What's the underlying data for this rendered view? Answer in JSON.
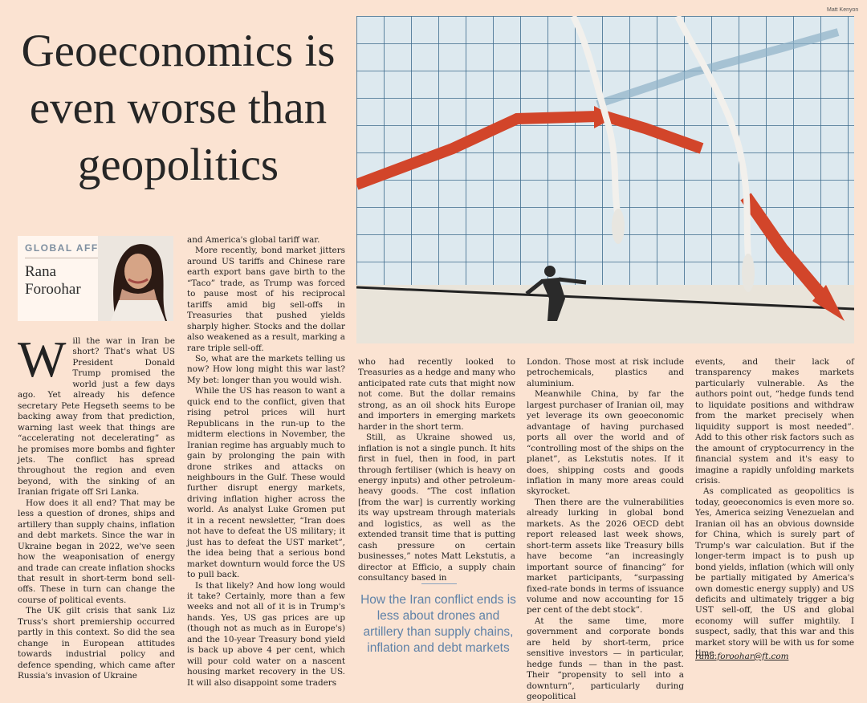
{
  "article": {
    "headline": "Geoeconomics is even worse than geopolitics",
    "illustration_credit": "Matt Kenyon",
    "column_name": "GLOBAL AFFAIRS",
    "author": "Rana Foroohar",
    "pull_quote": "How the Iran conflict ends is less about drones and artillery than supply chains, inflation and debt markets",
    "email": "rana.foroohar@ft.com",
    "dropcap": "W",
    "col1": [
      "ill the war in Iran be short? That's what US President Donald Trump promised the world just a few days ago. Yet already his defence secretary Pete Hegseth seems to be backing away from that prediction, warning last week that things are “accelerating not decelerating” as he promises more bombs and fighter jets. The conflict has spread throughout the region and even beyond, with the sinking of an Iranian frigate off Sri Lanka.",
      "How does it all end? That may be less a question of drones, ships and artillery than supply chains, inflation and debt markets. Since the war in Ukraine began in 2022, we've seen how the weaponisation of energy and trade can create inflation shocks that result in short-term bond sell-offs. These in turn can change the course of political events.",
      "The UK gilt crisis that sank Liz Truss's short premiership occurred partly in this context. So did the sea change in European attitudes towards industrial policy and defence spending, which came after Russia's invasion of Ukraine"
    ],
    "col2": [
      "and America's global tariff war.",
      "More recently, bond market jitters around US tariffs and Chinese rare earth export bans gave birth to the “Taco” trade, as Trump was forced to pause most of his reciprocal tariffs amid big sell-offs in Treasuries that pushed yields sharply higher. Stocks and the dollar also weakened as a result, marking a rare triple sell-off.",
      "So, what are the markets telling us now? How long might this war last? My bet: longer than you would wish.",
      "While the US has reason to want a quick end to the conflict, given that rising petrol prices will hurt Republicans in the run-up to the midterm elections in November, the Iranian regime has arguably much to gain by prolonging the pain with drone strikes and attacks on neighbours in the Gulf. These would further disrupt energy markets, driving inflation higher across the world. As analyst Luke Gromen put it in a recent newsletter, “Iran does not have to defeat the US military; it just has to defeat the UST market”, the idea being that a serious bond market downturn would force the US to pull back.",
      "Is that likely? And how long would it take? Certainly, more than a few weeks and not all of it is in Trump's hands. Yes, US gas prices are up (though not as much as in Europe's) and the 10-year Treasury bond yield is back up above 4 per cent, which will pour cold water on a nascent housing market recovery in the US. It will also disappoint some traders"
    ],
    "col3": [
      "who had recently looked to Treasuries as a hedge and many who anticipated rate cuts that might now not come. But the dollar remains strong, as an oil shock hits Europe and importers in emerging markets harder in the short term.",
      "Still, as Ukraine showed us, inflation is not a single punch. It hits first in fuel, then in food, in part through fertiliser (which is heavy on energy inputs) and other petroleum-heavy goods. “The cost inflation [from the war] is currently working its way upstream through materials and logistics, as well as the extended transit time that is putting cash pressure on certain businesses,” notes Matt Lekstutis, a director at Efficio, a supply chain consultancy based in"
    ],
    "col4": [
      "London. Those most at risk include petrochemicals, plastics and aluminium.",
      "Meanwhile China, by far the largest purchaser of Iranian oil, may yet leverage its own geoeconomic advantage of having purchased ports all over the world and of “controlling most of the ships on the planet”, as Lekstutis notes. If it does, shipping costs and goods inflation in many more areas could skyrocket.",
      "Then there are the vulnerabilities already lurking in global bond markets. As the 2026 OECD debt report released last week shows, short-term assets like Treasury bills have become “an increasingly important source of financing” for market participants, “surpassing fixed-rate bonds in terms of issuance volume and now accounting for 15 per cent of the debt stock”.",
      "At the same time, more government and corporate bonds are held by short-term, price sensitive investors — in particular, hedge funds — than in the past. Their “propensity to sell into a downturn”, particularly during geopolitical"
    ],
    "col5": [
      "events, and their lack of transparency makes markets particularly vulnerable. As the authors point out, “hedge funds tend to liquidate positions and withdraw from the market precisely when liquidity support is most needed”. Add to this other risk factors such as the amount of cryptocurrency in the financial system and it's easy to imagine a rapidly unfolding markets crisis.",
      "As complicated as geopolitics is today, geoeconomics is even more so. Yes, America seizing Venezuelan and Iranian oil has an obvious downside for China, which is surely part of Trump's war calculation. But if the longer-term impact is to push up bond yields, inflation (which will only be partially mitigated by America's own domestic energy supply) and US deficits and ultimately trigger a big UST sell-off, the US and global economy will suffer mightily. I suspect, sadly, that this war and this market story will be with us for some time."
    ]
  },
  "colors": {
    "page": "#fbe3d2",
    "grid_bg": "#dde9ef",
    "grid_line": "#3d6b8c",
    "red_arrow": "#d2452a",
    "pull_quote": "#5f82a8",
    "kicker": "#7e8fa0"
  }
}
